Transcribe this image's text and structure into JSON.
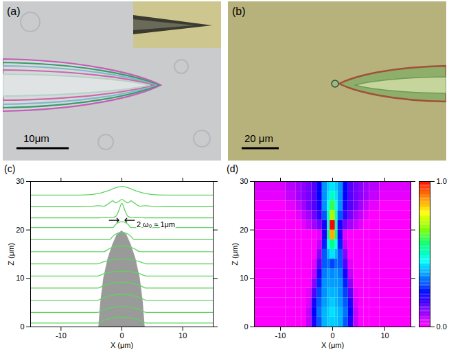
{
  "images": [
    {
      "label": "(a)",
      "scale_bar": "10μm"
    },
    {
      "label": "(b)",
      "scale_bar": "20 μm"
    }
  ],
  "chart_data": [
    {
      "type": "line",
      "title": "(c)",
      "x_label": "X (μm)",
      "y_label": "Z (μm)",
      "xlim": [
        -15,
        15
      ],
      "ylim": [
        0,
        30
      ],
      "xticks": [
        -10,
        0,
        10
      ],
      "yticks": [
        0,
        10,
        20,
        30
      ],
      "color": "#5fd35f",
      "fiber_outline": {
        "z": [
          0,
          5,
          10,
          14,
          17,
          19,
          19.8
        ],
        "x_left": [
          -3.8,
          -3.5,
          -3,
          -2.3,
          -1.5,
          -0.8,
          0
        ],
        "x_right": [
          3.8,
          3.5,
          3,
          2.3,
          1.5,
          0.8,
          0
        ]
      },
      "annotation": {
        "text": "2 ω₀ ≈ 1μm",
        "x": [
          -0.5,
          0.5
        ],
        "y": 22
      },
      "x": [
        -15,
        -10,
        -7,
        -5,
        -4,
        -3,
        -2,
        -1.5,
        -1,
        -0.5,
        0,
        0.5,
        1,
        1.5,
        2,
        3,
        4,
        5,
        7,
        10,
        15
      ],
      "series": [
        {
          "values": [
            0.8,
            0.8,
            0.8,
            0.8,
            0.8,
            1.33,
            1.7,
            1.83,
            1.93,
            1.98,
            2.0,
            1.98,
            1.93,
            1.83,
            1.7,
            1.33,
            0.8,
            0.8,
            0.8,
            0.8,
            0.8
          ]
        },
        {
          "values": [
            3,
            3,
            3,
            3,
            3,
            3.53,
            3.9,
            4.03,
            4.13,
            4.18,
            4.2,
            4.18,
            4.13,
            4.03,
            3.9,
            3.53,
            3,
            3,
            3,
            3,
            3
          ]
        },
        {
          "values": [
            5.5,
            5.5,
            5.5,
            5.5,
            5.5,
            6.03,
            6.4,
            6.53,
            6.63,
            6.68,
            6.7,
            6.68,
            6.63,
            6.53,
            6.4,
            6.03,
            5.5,
            5.5,
            5.5,
            5.5,
            5.5
          ]
        },
        {
          "values": [
            8,
            8,
            8,
            8,
            8,
            8.53,
            8.9,
            9.03,
            9.13,
            9.18,
            9.2,
            9.18,
            9.13,
            9.03,
            8.9,
            8.53,
            8,
            8,
            8,
            8,
            8
          ]
        },
        {
          "values": [
            10.5,
            10.5,
            10.5,
            10.5,
            10.5,
            10.94,
            11.25,
            11.36,
            11.44,
            11.48,
            11.5,
            11.48,
            11.44,
            11.36,
            11.25,
            10.94,
            10.5,
            10.5,
            10.5,
            10.5,
            10.5
          ]
        },
        {
          "values": [
            13,
            13,
            13,
            13,
            13,
            13.44,
            13.75,
            13.86,
            13.94,
            13.98,
            14,
            13.98,
            13.94,
            13.86,
            13.75,
            13.44,
            13,
            13,
            13,
            13,
            13
          ]
        },
        {
          "values": [
            15.5,
            15.5,
            15.5,
            15.5,
            15.5,
            15.5,
            16.17,
            16.4,
            16.57,
            16.66,
            16.7,
            16.66,
            16.57,
            16.4,
            16.17,
            15.5,
            15.5,
            15.5,
            15.5,
            15.5,
            15.5
          ]
        },
        {
          "values": [
            18,
            18,
            18,
            18,
            18,
            18,
            18,
            18.66,
            19.13,
            19.41,
            19.5,
            19.41,
            19.13,
            18.66,
            18,
            18,
            18,
            18,
            18,
            18,
            18
          ]
        },
        {
          "values": [
            20.5,
            20.5,
            20.5,
            20.5,
            20.5,
            20.5,
            20.5,
            20.5,
            21.17,
            21.57,
            21.7,
            21.57,
            21.17,
            20.5,
            20.5,
            20.5,
            20.5,
            20.5,
            20.5,
            20.5,
            20.5
          ]
        },
        {
          "values": [
            22.5,
            22.5,
            22.5,
            22.5,
            22.5,
            22.55,
            22.6,
            22.6,
            22.8,
            24,
            25.5,
            24,
            22.8,
            22.6,
            22.6,
            22.55,
            22.5,
            22.5,
            22.5,
            22.5,
            22.5
          ]
        },
        {
          "values": [
            24.8,
            24.8,
            24.8,
            24.85,
            25,
            24.9,
            25.6,
            26,
            25.6,
            25.9,
            26.3,
            25.9,
            25.6,
            26,
            25.6,
            24.9,
            25,
            24.85,
            24.8,
            24.8,
            24.8
          ]
        },
        {
          "values": [
            27.2,
            27.2,
            27.2,
            27.3,
            27.5,
            27.8,
            28.2,
            28.5,
            28.7,
            28.9,
            29,
            28.9,
            28.7,
            28.5,
            28.2,
            27.8,
            27.5,
            27.3,
            27.2,
            27.2,
            27.2
          ]
        }
      ]
    },
    {
      "type": "heatmap",
      "title": "(d)",
      "x_label": "X (μm)",
      "y_label": "Z (μm)",
      "xlim": [
        -15,
        15
      ],
      "ylim": [
        0,
        30
      ],
      "xticks": [
        -10,
        0,
        10
      ],
      "yticks": [
        0,
        10,
        20,
        30
      ],
      "x_edges": [
        -15,
        -9,
        -7,
        -6,
        -5,
        -4,
        -3,
        -2,
        -1,
        -0.5,
        0.5,
        1,
        2,
        3,
        4,
        5,
        6,
        7,
        9,
        15
      ],
      "z_edges": [
        0,
        2,
        4,
        6,
        8,
        10,
        12,
        14,
        16,
        18,
        20,
        22,
        24,
        26,
        28,
        30
      ],
      "cells": [
        [
          0,
          0,
          0,
          0,
          0.05,
          0.2,
          0.3,
          0.38,
          0.4,
          0.4,
          0.4,
          0.38,
          0.3,
          0.2,
          0.05,
          0,
          0,
          0,
          0
        ],
        [
          0,
          0,
          0,
          0,
          0.05,
          0.22,
          0.32,
          0.38,
          0.4,
          0.42,
          0.4,
          0.38,
          0.32,
          0.22,
          0.05,
          0,
          0,
          0,
          0
        ],
        [
          0,
          0,
          0,
          0,
          0.03,
          0.2,
          0.3,
          0.36,
          0.38,
          0.4,
          0.38,
          0.36,
          0.3,
          0.2,
          0.03,
          0,
          0,
          0,
          0
        ],
        [
          0,
          0,
          0,
          0,
          0.02,
          0.15,
          0.28,
          0.35,
          0.38,
          0.38,
          0.38,
          0.35,
          0.28,
          0.15,
          0.02,
          0,
          0,
          0,
          0
        ],
        [
          0,
          0,
          0,
          0,
          0,
          0.1,
          0.25,
          0.35,
          0.36,
          0.36,
          0.36,
          0.35,
          0.25,
          0.1,
          0,
          0,
          0,
          0,
          0
        ],
        [
          0,
          0,
          0,
          0,
          0,
          0.05,
          0.2,
          0.33,
          0.36,
          0.34,
          0.36,
          0.33,
          0.2,
          0.05,
          0,
          0,
          0,
          0,
          0
        ],
        [
          0,
          0,
          0,
          0,
          0,
          0.02,
          0.15,
          0.3,
          0.32,
          0.28,
          0.32,
          0.3,
          0.15,
          0.02,
          0,
          0,
          0,
          0,
          0
        ],
        [
          0,
          0,
          0,
          0,
          0,
          0,
          0.1,
          0.3,
          0.38,
          0.42,
          0.38,
          0.3,
          0.1,
          0,
          0,
          0,
          0,
          0,
          0
        ],
        [
          0,
          0,
          0,
          0,
          0,
          0,
          0.05,
          0.25,
          0.45,
          0.55,
          0.45,
          0.25,
          0.05,
          0,
          0,
          0,
          0,
          0,
          0
        ],
        [
          0,
          0,
          0,
          0,
          0,
          0,
          0.02,
          0.2,
          0.55,
          0.85,
          0.55,
          0.2,
          0.02,
          0,
          0,
          0,
          0,
          0,
          0
        ],
        [
          0,
          0,
          0,
          0.02,
          0.05,
          0.08,
          0.12,
          0.2,
          0.5,
          1,
          0.5,
          0.2,
          0.12,
          0.08,
          0.05,
          0.02,
          0,
          0,
          0
        ],
        [
          0,
          0,
          0.02,
          0.05,
          0.08,
          0.12,
          0.18,
          0.3,
          0.5,
          0.7,
          0.5,
          0.3,
          0.18,
          0.12,
          0.08,
          0.05,
          0.02,
          0,
          0
        ],
        [
          0,
          0.02,
          0.05,
          0.08,
          0.12,
          0.15,
          0.2,
          0.35,
          0.45,
          0.6,
          0.45,
          0.35,
          0.2,
          0.15,
          0.12,
          0.08,
          0.05,
          0.02,
          0
        ],
        [
          0.02,
          0.05,
          0.08,
          0.1,
          0.12,
          0.15,
          0.22,
          0.35,
          0.42,
          0.5,
          0.42,
          0.35,
          0.22,
          0.15,
          0.12,
          0.1,
          0.08,
          0.05,
          0.02
        ],
        [
          0.03,
          0.06,
          0.08,
          0.1,
          0.12,
          0.15,
          0.22,
          0.35,
          0.4,
          0.42,
          0.4,
          0.35,
          0.22,
          0.15,
          0.12,
          0.1,
          0.08,
          0.06,
          0.03
        ]
      ],
      "colorbar": {
        "range": [
          0,
          1
        ],
        "ticks": [
          {
            "value": 0,
            "label": "0.0"
          },
          {
            "value": 1,
            "label": "1.0"
          }
        ]
      }
    }
  ]
}
